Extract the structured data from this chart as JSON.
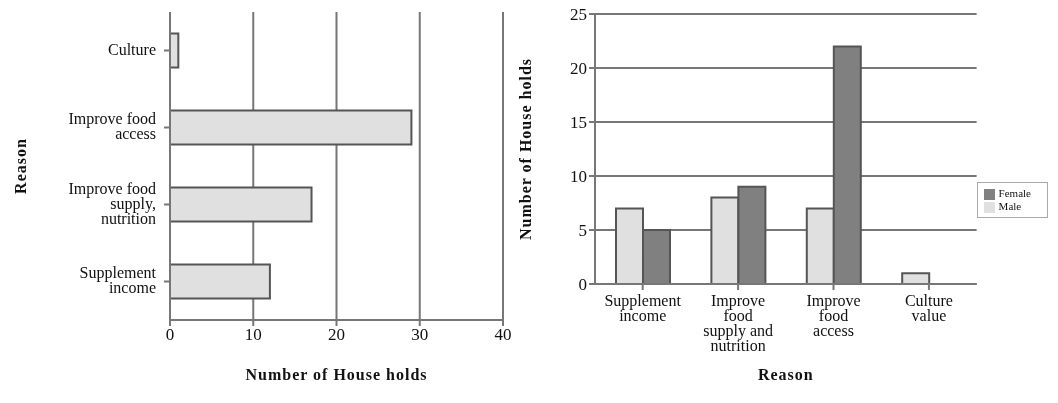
{
  "chart_data": [
    {
      "type": "bar",
      "orientation": "horizontal",
      "categories": [
        "Culture",
        "Improve food access",
        "Improve food supply, nutrition",
        "Supplement income"
      ],
      "values": [
        1,
        29,
        17,
        12
      ],
      "color": "#e0e0e0",
      "xlim": [
        0,
        40
      ],
      "xticks": [
        0,
        10,
        20,
        30,
        40
      ],
      "xlabel": "Number of House holds",
      "ylabel": "Reason",
      "grid": "x",
      "legend": false
    },
    {
      "type": "bar",
      "categories": [
        "Supplement income",
        "Improve food supply and nutrition",
        "Improve food access",
        "Culture value"
      ],
      "series": [
        {
          "name": "Male",
          "color": "#e0e0e0",
          "values": [
            7,
            8,
            7,
            1
          ]
        },
        {
          "name": "Female",
          "color": "#808080",
          "values": [
            5,
            9,
            22,
            null
          ]
        }
      ],
      "ylim": [
        0,
        25
      ],
      "yticks": [
        0,
        5,
        10,
        15,
        20,
        25
      ],
      "xlabel": "Reason",
      "ylabel": "Number of House holds",
      "grid": "y",
      "legend": "right"
    }
  ]
}
